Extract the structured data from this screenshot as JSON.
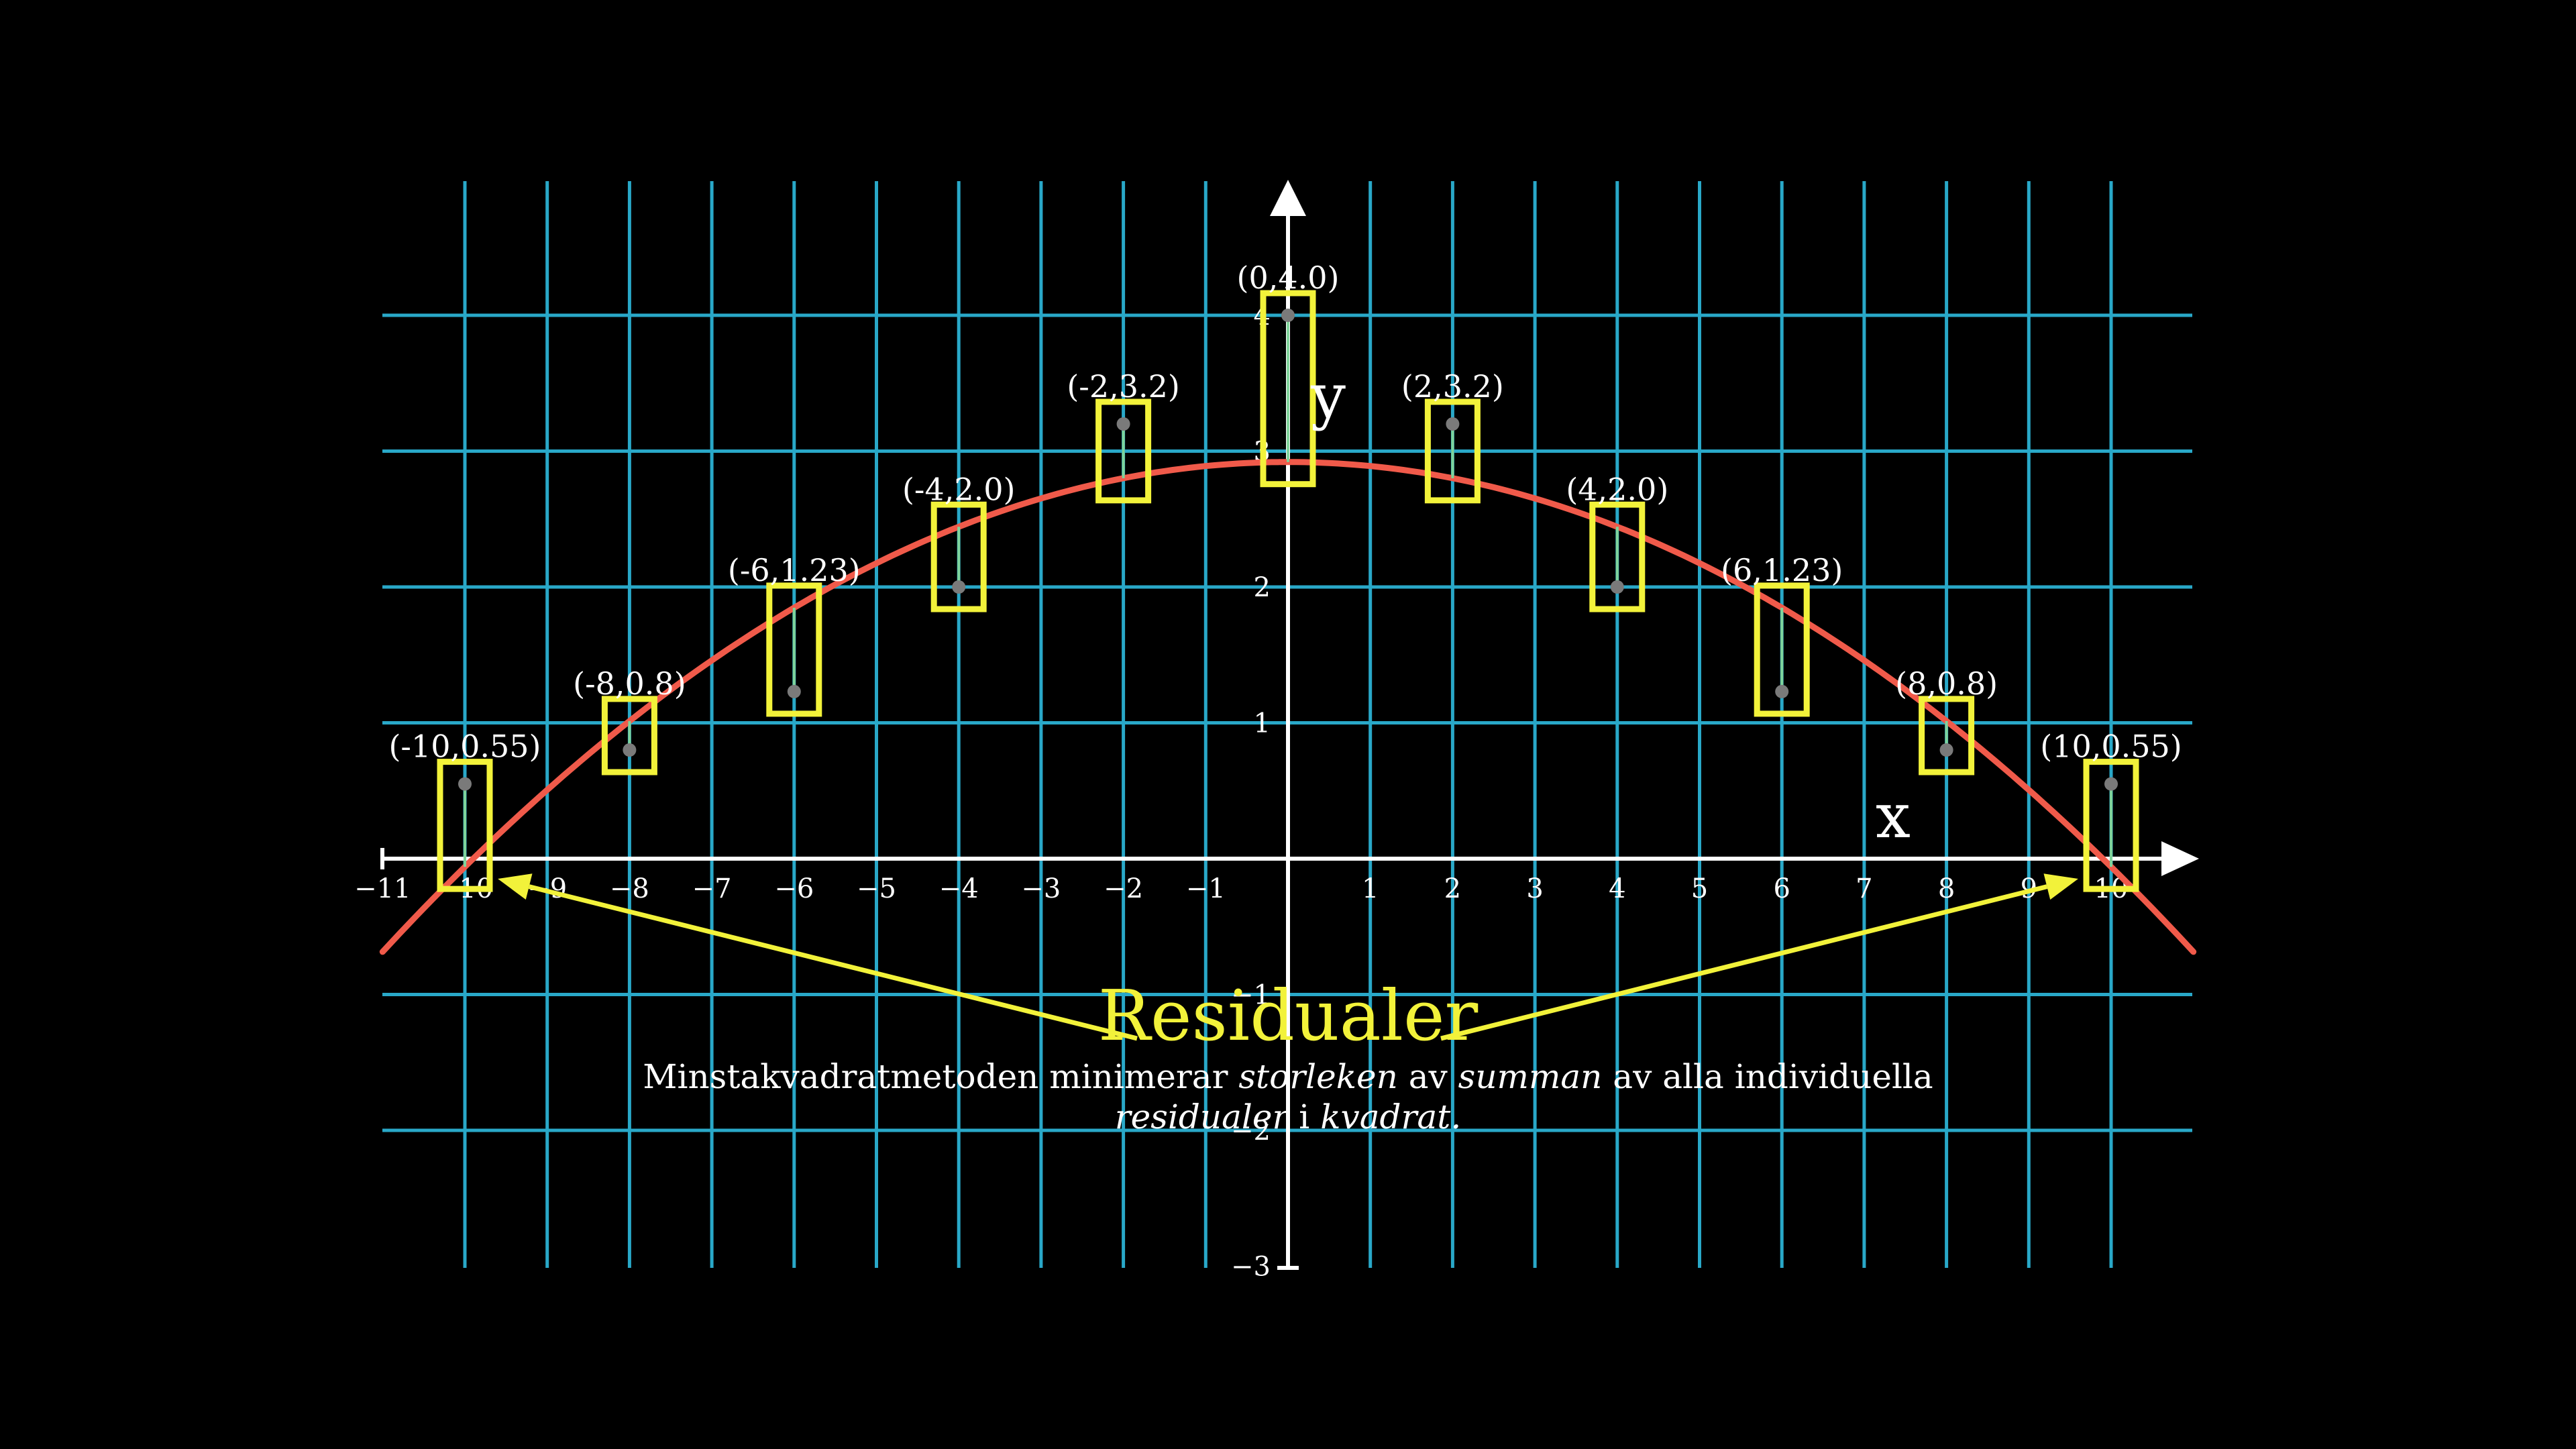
{
  "colors": {
    "background": "#000000",
    "grid": "#29a8c8",
    "axis": "#ffffff",
    "curve": "#f05a4a",
    "box": "#f2f23a",
    "point": "#7a7a7a",
    "residual": "#7fd49a",
    "title": "#f2f23a",
    "text": "#ffffff"
  },
  "chart_data": {
    "type": "scatter",
    "xlim": [
      -11,
      11
    ],
    "ylim": [
      -3,
      4.9
    ],
    "x_ticks": [
      -11,
      -10,
      -9,
      -8,
      -7,
      -6,
      -5,
      -4,
      -3,
      -2,
      -1,
      1,
      2,
      3,
      4,
      5,
      6,
      7,
      8,
      9,
      10
    ],
    "y_ticks": [
      -3,
      -2,
      -1,
      1,
      2,
      3,
      4
    ],
    "grid": true,
    "xlabel": "x",
    "ylabel": "y",
    "points": [
      {
        "x": -10,
        "y": 0.55,
        "label": "(-10,0.55)"
      },
      {
        "x": -8,
        "y": 0.8,
        "label": "(-8,0.8)"
      },
      {
        "x": -6,
        "y": 1.23,
        "label": "(-6,1.23)"
      },
      {
        "x": -4,
        "y": 2.0,
        "label": "(-4,2.0)"
      },
      {
        "x": -2,
        "y": 3.2,
        "label": "(-2,3.2)"
      },
      {
        "x": 0,
        "y": 4.0,
        "label": "(0,4.0)"
      },
      {
        "x": 2,
        "y": 3.2,
        "label": "(2,3.2)"
      },
      {
        "x": 4,
        "y": 2.0,
        "label": "(4,2.0)"
      },
      {
        "x": 6,
        "y": 1.23,
        "label": "(6,1.23)"
      },
      {
        "x": 8,
        "y": 0.8,
        "label": "(8,0.8)"
      },
      {
        "x": 10,
        "y": 0.55,
        "label": "(10,0.55)"
      }
    ],
    "fit_curve": {
      "type": "quadratic",
      "a": -0.0298,
      "b": 0,
      "c": 2.92,
      "x_range": [
        -11,
        11
      ]
    },
    "annotation": {
      "title": "Residualer",
      "arrow_targets_x": [
        -9.6,
        9.6
      ],
      "caption": [
        [
          {
            "text": "Minstakvadratmetoden minimerar ",
            "em": false
          },
          {
            "text": "storleken",
            "em": true
          },
          {
            "text": " av ",
            "em": false
          },
          {
            "text": "summan",
            "em": true
          },
          {
            "text": " av alla individuella",
            "em": false
          }
        ],
        [
          {
            "text": "residualer",
            "em": true
          },
          {
            "text": " i ",
            "em": false
          },
          {
            "text": "kvadrat.",
            "em": true
          }
        ]
      ]
    }
  }
}
